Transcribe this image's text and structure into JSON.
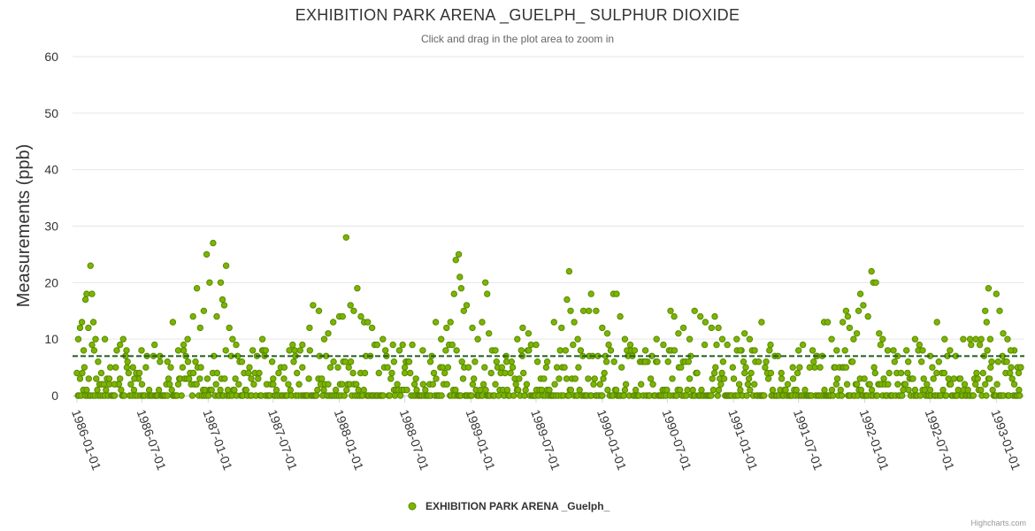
{
  "header": {
    "title": "EXHIBITION PARK ARENA _GUELPH_ SULPHUR DIOXIDE",
    "subtitle": "Click and drag in the plot area to zoom in"
  },
  "credits": "Highcharts.com",
  "chart_data": {
    "type": "scatter",
    "title": "EXHIBITION PARK ARENA _GUELPH_ SULPHUR DIOXIDE",
    "subtitle": "Click and drag in the plot area to zoom in",
    "xlabel": "",
    "ylabel": "Measurements (ppb)",
    "xlim": [
      "1985-12-20",
      "1993-03-20"
    ],
    "ylim": [
      0,
      60
    ],
    "yticks": [
      0,
      10,
      20,
      30,
      40,
      50,
      60
    ],
    "xticks": [
      "1986-01-01",
      "1986-07-01",
      "1987-01-01",
      "1987-07-01",
      "1988-01-01",
      "1988-07-01",
      "1989-01-01",
      "1989-07-01",
      "1990-01-01",
      "1990-07-01",
      "1991-01-01",
      "1991-07-01",
      "1992-01-01",
      "1992-07-01",
      "1993-01-01"
    ],
    "grid": true,
    "legend": {
      "position": "bottom-center"
    },
    "mean_line": {
      "value": 7,
      "style": "dashed",
      "color": "#1f5f1f"
    },
    "series": [
      {
        "name": "EXHIBITION PARK ARENA _Guelph_",
        "color": "#7cb500",
        "marker_border": "#5a8a00",
        "points": [
          [
            "1986-01-05",
            10
          ],
          [
            "1986-01-10",
            12
          ],
          [
            "1986-01-15",
            13
          ],
          [
            "1986-01-20",
            8
          ],
          [
            "1986-01-25",
            17
          ],
          [
            "1986-01-28",
            18
          ],
          [
            "1986-02-02",
            12
          ],
          [
            "1986-02-08",
            23
          ],
          [
            "1986-02-12",
            18
          ],
          [
            "1986-02-16",
            13
          ],
          [
            "1986-02-22",
            10
          ],
          [
            "1986-03-01",
            6
          ],
          [
            "1986-03-10",
            4
          ],
          [
            "1986-03-20",
            10
          ],
          [
            "1986-04-01",
            3
          ],
          [
            "1986-04-15",
            2
          ],
          [
            "1986-05-01",
            9
          ],
          [
            "1986-05-10",
            10
          ],
          [
            "1986-05-20",
            5
          ],
          [
            "1986-06-10",
            3
          ],
          [
            "1986-07-01",
            2
          ],
          [
            "1986-08-05",
            9
          ],
          [
            "1986-08-20",
            7
          ],
          [
            "1986-09-10",
            6
          ],
          [
            "1986-09-25",
            13
          ],
          [
            "1986-10-10",
            8
          ],
          [
            "1986-10-25",
            9
          ],
          [
            "1986-11-05",
            10
          ],
          [
            "1986-11-20",
            14
          ],
          [
            "1986-12-01",
            19
          ],
          [
            "1986-12-10",
            12
          ],
          [
            "1986-12-20",
            15
          ],
          [
            "1986-12-28",
            25
          ],
          [
            "1987-01-05",
            20
          ],
          [
            "1987-01-15",
            27
          ],
          [
            "1987-01-25",
            14
          ],
          [
            "1987-02-05",
            20
          ],
          [
            "1987-02-10",
            17
          ],
          [
            "1987-02-15",
            16
          ],
          [
            "1987-02-20",
            23
          ],
          [
            "1987-03-01",
            12
          ],
          [
            "1987-03-10",
            10
          ],
          [
            "1987-03-20",
            9
          ],
          [
            "1987-04-05",
            6
          ],
          [
            "1987-05-01",
            3
          ],
          [
            "1987-06-01",
            10
          ],
          [
            "1987-06-10",
            8
          ],
          [
            "1987-07-01",
            2
          ],
          [
            "1987-08-01",
            5
          ],
          [
            "1987-09-01",
            7
          ],
          [
            "1987-09-20",
            9
          ],
          [
            "1987-10-10",
            12
          ],
          [
            "1987-10-20",
            16
          ],
          [
            "1987-11-05",
            15
          ],
          [
            "1987-11-20",
            10
          ],
          [
            "1987-12-01",
            11
          ],
          [
            "1987-12-15",
            13
          ],
          [
            "1988-01-01",
            14
          ],
          [
            "1988-01-10",
            14
          ],
          [
            "1988-01-20",
            28
          ],
          [
            "1988-02-01",
            16
          ],
          [
            "1988-02-10",
            15
          ],
          [
            "1988-02-20",
            19
          ],
          [
            "1988-03-01",
            14
          ],
          [
            "1988-03-10",
            13
          ],
          [
            "1988-03-20",
            13
          ],
          [
            "1988-04-01",
            12
          ],
          [
            "1988-04-15",
            9
          ],
          [
            "1988-05-01",
            10
          ],
          [
            "1988-06-01",
            6
          ],
          [
            "1988-07-01",
            4
          ],
          [
            "1988-08-01",
            3
          ],
          [
            "1988-08-20",
            8
          ],
          [
            "1988-09-10",
            6
          ],
          [
            "1988-09-25",
            13
          ],
          [
            "1988-10-10",
            10
          ],
          [
            "1988-10-25",
            12
          ],
          [
            "1988-11-05",
            13
          ],
          [
            "1988-11-15",
            18
          ],
          [
            "1988-11-20",
            24
          ],
          [
            "1988-11-28",
            25
          ],
          [
            "1988-12-01",
            21
          ],
          [
            "1988-12-05",
            19
          ],
          [
            "1988-12-12",
            15
          ],
          [
            "1988-12-20",
            16
          ],
          [
            "1989-01-05",
            12
          ],
          [
            "1989-01-20",
            10
          ],
          [
            "1989-02-01",
            13
          ],
          [
            "1989-02-10",
            20
          ],
          [
            "1989-02-15",
            18
          ],
          [
            "1989-02-20",
            11
          ],
          [
            "1989-03-10",
            8
          ],
          [
            "1989-04-10",
            6
          ],
          [
            "1989-05-10",
            10
          ],
          [
            "1989-05-25",
            12
          ],
          [
            "1989-06-10",
            11
          ],
          [
            "1989-07-01",
            9
          ],
          [
            "1989-08-01",
            6
          ],
          [
            "1989-08-20",
            13
          ],
          [
            "1989-09-10",
            12
          ],
          [
            "1989-09-25",
            17
          ],
          [
            "1989-10-01",
            22
          ],
          [
            "1989-10-05",
            15
          ],
          [
            "1989-10-15",
            13
          ],
          [
            "1989-10-25",
            10
          ],
          [
            "1989-11-10",
            15
          ],
          [
            "1989-11-25",
            15
          ],
          [
            "1989-12-01",
            18
          ],
          [
            "1989-12-15",
            15
          ],
          [
            "1990-01-01",
            12
          ],
          [
            "1990-01-15",
            11
          ],
          [
            "1990-02-01",
            18
          ],
          [
            "1990-02-10",
            18
          ],
          [
            "1990-02-20",
            14
          ],
          [
            "1990-03-05",
            10
          ],
          [
            "1990-04-01",
            8
          ],
          [
            "1990-05-01",
            6
          ],
          [
            "1990-06-01",
            10
          ],
          [
            "1990-06-20",
            9
          ],
          [
            "1990-07-10",
            15
          ],
          [
            "1990-07-20",
            14
          ],
          [
            "1990-08-01",
            11
          ],
          [
            "1990-08-15",
            12
          ],
          [
            "1990-09-01",
            10
          ],
          [
            "1990-09-15",
            15
          ],
          [
            "1990-10-01",
            14
          ],
          [
            "1990-10-15",
            13
          ],
          [
            "1990-11-01",
            12
          ],
          [
            "1990-11-10",
            14
          ],
          [
            "1990-11-20",
            12
          ],
          [
            "1990-12-01",
            10
          ],
          [
            "1990-12-15",
            9
          ],
          [
            "1991-01-10",
            10
          ],
          [
            "1991-01-20",
            8
          ],
          [
            "1991-02-01",
            11
          ],
          [
            "1991-02-15",
            10
          ],
          [
            "1991-03-01",
            8
          ],
          [
            "1991-03-20",
            13
          ],
          [
            "1991-04-15",
            4
          ],
          [
            "1991-05-15",
            3
          ],
          [
            "1991-06-15",
            5
          ],
          [
            "1991-07-01",
            8
          ],
          [
            "1991-08-01",
            5
          ],
          [
            "1991-08-20",
            7
          ],
          [
            "1991-09-10",
            13
          ],
          [
            "1991-09-20",
            13
          ],
          [
            "1991-10-01",
            10
          ],
          [
            "1991-10-15",
            8
          ],
          [
            "1991-11-01",
            13
          ],
          [
            "1991-11-10",
            15
          ],
          [
            "1991-11-15",
            14
          ],
          [
            "1991-11-20",
            12
          ],
          [
            "1991-12-01",
            10
          ],
          [
            "1991-12-10",
            11
          ],
          [
            "1991-12-15",
            15
          ],
          [
            "1991-12-20",
            18
          ],
          [
            "1991-12-28",
            16
          ],
          [
            "1992-01-10",
            14
          ],
          [
            "1992-01-20",
            22
          ],
          [
            "1992-01-25",
            20
          ],
          [
            "1992-02-01",
            20
          ],
          [
            "1992-02-10",
            11
          ],
          [
            "1992-02-20",
            10
          ],
          [
            "1992-03-05",
            8
          ],
          [
            "1992-04-01",
            7
          ],
          [
            "1992-05-01",
            6
          ],
          [
            "1992-05-20",
            10
          ],
          [
            "1992-06-10",
            8
          ],
          [
            "1992-07-01",
            7
          ],
          [
            "1992-07-20",
            13
          ],
          [
            "1992-08-10",
            10
          ],
          [
            "1992-08-25",
            8
          ],
          [
            "1992-09-10",
            7
          ],
          [
            "1992-10-01",
            10
          ],
          [
            "1992-10-20",
            10
          ],
          [
            "1992-11-05",
            10
          ],
          [
            "1992-11-20",
            10
          ],
          [
            "1992-12-01",
            15
          ],
          [
            "1992-12-05",
            13
          ],
          [
            "1992-12-10",
            19
          ],
          [
            "1992-12-15",
            10
          ],
          [
            "1993-01-01",
            18
          ],
          [
            "1993-01-10",
            15
          ],
          [
            "1993-01-20",
            11
          ],
          [
            "1993-02-01",
            10
          ],
          [
            "1993-02-10",
            8
          ],
          [
            "1993-02-20",
            2
          ],
          [
            "1993-03-01",
            5
          ],
          [
            "1993-03-05",
            1
          ],
          [
            "1993-03-10",
            5
          ]
        ]
      }
    ]
  }
}
